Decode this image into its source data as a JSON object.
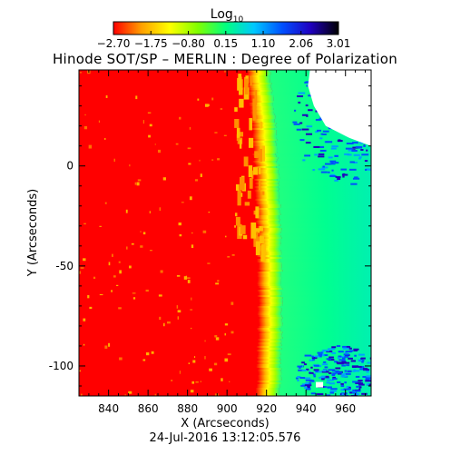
{
  "chart_data": {
    "type": "heatmap",
    "title": "Hinode SOT/SP – MERLIN : Degree of Polarization",
    "colorbar": {
      "label_base": "Log",
      "label_sub": "10",
      "ticks": [
        -2.7,
        -1.75,
        -0.8,
        0.15,
        1.1,
        2.06,
        3.01
      ],
      "tick_labels": [
        "−2.70",
        "−1.75",
        "−0.80",
        "0.15",
        "1.10",
        "2.06",
        "3.01"
      ],
      "range": [
        -2.7,
        3.01
      ],
      "colors": [
        "#ff0000",
        "#ffa000",
        "#ffff00",
        "#80ff00",
        "#00ff80",
        "#00c8ff",
        "#0050ff",
        "#2000c0",
        "#000000"
      ]
    },
    "xlabel": "X (Arcseconds)",
    "ylabel": "Y (Arcseconds)",
    "xlim": [
      825,
      973
    ],
    "ylim": [
      -115,
      48
    ],
    "xticks": [
      840,
      860,
      880,
      900,
      920,
      940,
      960
    ],
    "yticks": [
      0,
      -50,
      -100
    ],
    "timestamp": "24-Jul-2016 13:12:05.576",
    "features": {
      "limb_x": 927,
      "background_value": -2.7,
      "off_limb_values": [
        0.3,
        2.5
      ],
      "missing_color": "#ffffff"
    }
  }
}
